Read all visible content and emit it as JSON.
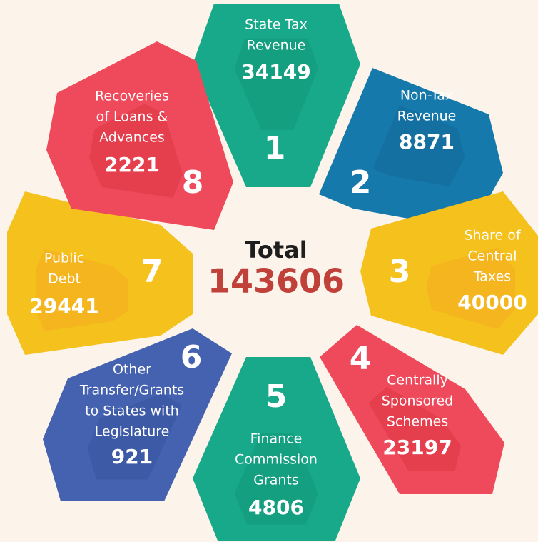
{
  "total": {
    "label": "Total",
    "value": 143606
  },
  "segments": [
    {
      "number": 1,
      "lines": [
        "State Tax",
        "Revenue"
      ],
      "value": 34149
    },
    {
      "number": 2,
      "lines": [
        "Non-Tax",
        "Revenue"
      ],
      "value": 8871
    },
    {
      "number": 3,
      "lines": [
        "Share of",
        "Central",
        "Taxes"
      ],
      "value": 40000
    },
    {
      "number": 4,
      "lines": [
        "Centrally",
        "Sponsored",
        "Schemes"
      ],
      "value": 23197
    },
    {
      "number": 5,
      "lines": [
        "Finance",
        "Commission",
        "Grants"
      ],
      "value": 4806
    },
    {
      "number": 6,
      "lines": [
        "Other",
        "Transfer/Grants",
        "to States with",
        "Legislature"
      ],
      "value": 921
    },
    {
      "number": 7,
      "lines": [
        "Public",
        "Debt"
      ],
      "value": 29441
    },
    {
      "number": 8,
      "lines": [
        "Recoveries",
        "of Loans &",
        "Advances"
      ],
      "value": 2221
    }
  ]
}
